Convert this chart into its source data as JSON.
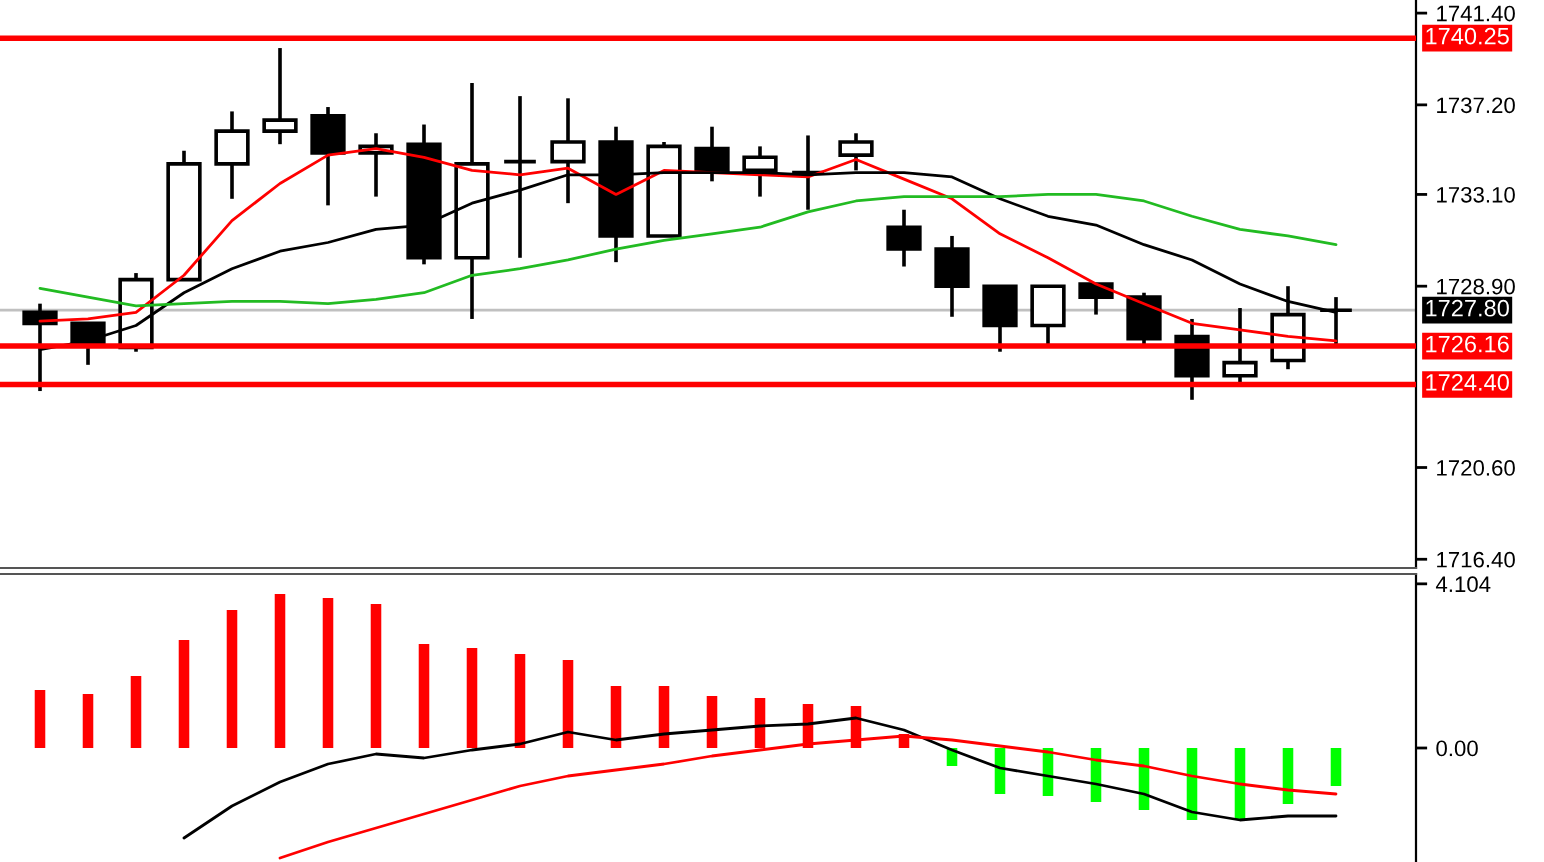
{
  "chart_data": [
    {
      "type": "candlestick",
      "categories": [
        null,
        null,
        null,
        null,
        null,
        null,
        null,
        null,
        null,
        null,
        null,
        null,
        null,
        null,
        null,
        null,
        null,
        null,
        null,
        null,
        null,
        null,
        null,
        null,
        null,
        null,
        null,
        null
      ],
      "ohlc": [
        [
          1727.7,
          1728.1,
          1724.1,
          1727.2
        ],
        [
          1727.2,
          1727.2,
          1725.3,
          1726.2
        ],
        [
          1726.1,
          1729.5,
          1725.9,
          1729.2
        ],
        [
          1729.2,
          1735.1,
          1729.2,
          1734.5
        ],
        [
          1734.5,
          1736.9,
          1732.9,
          1736.0
        ],
        [
          1736.0,
          1739.8,
          1735.4,
          1736.5
        ],
        [
          1736.7,
          1737.1,
          1732.6,
          1735.0
        ],
        [
          1735.0,
          1735.9,
          1733.0,
          1735.3
        ],
        [
          1735.4,
          1736.3,
          1729.9,
          1730.2
        ],
        [
          1730.2,
          1738.2,
          1727.4,
          1734.5
        ],
        [
          1734.6,
          1737.6,
          1730.2,
          1734.6
        ],
        [
          1734.6,
          1737.5,
          1732.7,
          1735.5
        ],
        [
          1735.5,
          1736.2,
          1730.0,
          1731.2
        ],
        [
          1731.2,
          1735.5,
          1731.2,
          1735.3
        ],
        [
          1735.2,
          1736.2,
          1733.7,
          1734.2
        ],
        [
          1734.2,
          1735.3,
          1733.0,
          1734.8
        ],
        [
          1734.1,
          1735.8,
          1732.4,
          1734.1
        ],
        [
          1734.9,
          1735.9,
          1734.2,
          1735.5
        ],
        [
          1731.6,
          1732.4,
          1729.8,
          1730.6
        ],
        [
          1730.6,
          1731.2,
          1727.5,
          1728.9
        ],
        [
          1728.9,
          1728.9,
          1725.9,
          1727.1
        ],
        [
          1727.1,
          1728.9,
          1726.1,
          1728.9
        ],
        [
          1729.0,
          1729.0,
          1727.6,
          1728.4
        ],
        [
          1728.4,
          1728.6,
          1726.2,
          1726.5
        ],
        [
          1726.6,
          1727.4,
          1723.7,
          1724.8
        ],
        [
          1724.8,
          1727.9,
          1724.4,
          1725.4
        ],
        [
          1725.5,
          1728.9,
          1725.1,
          1727.6
        ],
        [
          1727.8,
          1728.4,
          1726.2,
          1727.8
        ]
      ],
      "colors": [
        "#000000",
        "#000000",
        "#ffffff",
        "#ffffff",
        "#ffffff",
        "#ffffff",
        "#000000",
        "#ffffff",
        "#000000",
        "#ffffff",
        "#000000",
        "#ffffff",
        "#000000",
        "#ffffff",
        "#000000",
        "#ffffff",
        "#000000",
        "#ffffff",
        "#000000",
        "#000000",
        "#000000",
        "#ffffff",
        "#000000",
        "#000000",
        "#000000",
        "#ffffff",
        "#ffffff",
        "#000000"
      ],
      "series": [
        {
          "type": "line",
          "color": "#ff0000",
          "values": [
            1727.3,
            1727.4,
            1727.7,
            1729.4,
            1731.9,
            1733.6,
            1734.9,
            1735.2,
            1734.8,
            1734.2,
            1734.0,
            1734.3,
            1733.1,
            1734.2,
            1734.1,
            1734.0,
            1733.9,
            1734.7,
            1733.8,
            1732.9,
            1731.3,
            1730.2,
            1729.0,
            1728.1,
            1727.2,
            1726.9,
            1726.6,
            1726.4
          ]
        },
        {
          "type": "line",
          "color": "#000000",
          "values": [
            1726.0,
            1726.4,
            1727.1,
            1728.6,
            1729.7,
            1730.5,
            1730.9,
            1731.5,
            1731.7,
            1732.7,
            1733.3,
            1734.0,
            1734.0,
            1734.1,
            1734.1,
            1734.1,
            1734.0,
            1734.1,
            1734.1,
            1733.9,
            1732.9,
            1732.1,
            1731.7,
            1730.8,
            1730.1,
            1729.0,
            1728.2,
            1727.7
          ]
        },
        {
          "type": "line",
          "color": "#22bb22",
          "values": [
            1728.8,
            1728.4,
            1728.0,
            1728.1,
            1728.2,
            1728.2,
            1728.1,
            1728.3,
            1728.6,
            1729.4,
            1729.7,
            1730.1,
            1730.6,
            1731.0,
            1731.3,
            1731.6,
            1732.3,
            1732.8,
            1733.0,
            1733.0,
            1733.0,
            1733.1,
            1733.1,
            1732.8,
            1732.1,
            1731.5,
            1731.2,
            1730.8
          ]
        }
      ],
      "ylim": [
        1716.0,
        1742.0
      ],
      "yticks": [
        {
          "value": 1741.4,
          "label": "1741.40"
        },
        {
          "value": 1737.2,
          "label": "1737.20"
        },
        {
          "value": 1733.1,
          "label": "1733.10"
        },
        {
          "value": 1728.9,
          "label": "1728.90"
        },
        {
          "value": 1720.6,
          "label": "1720.60"
        },
        {
          "value": 1716.4,
          "label": "1716.40"
        }
      ],
      "ref_lines": [
        {
          "axis": "y",
          "value": 1727.8,
          "label": "1727.80",
          "color": "#c0c0c0"
        },
        {
          "axis": "y",
          "value": 1740.25,
          "label": "1740.25",
          "color": "#ff0000"
        },
        {
          "axis": "y",
          "value": 1726.16,
          "label": "1726.16",
          "color": "#ff0000"
        },
        {
          "axis": "y",
          "value": 1724.4,
          "label": "1724.40",
          "color": "#ff0000"
        }
      ],
      "tick_labels": "y"
    },
    {
      "type": "bar",
      "categories": [
        null,
        null,
        null,
        null,
        null,
        null,
        null,
        null,
        null,
        null,
        null,
        null,
        null,
        null,
        null,
        null,
        null,
        null,
        null,
        null,
        null,
        null,
        null,
        null,
        null,
        null,
        null,
        null
      ],
      "series": [
        {
          "type": "bar",
          "values": [
            1.45,
            1.35,
            1.8,
            2.7,
            3.45,
            3.85,
            3.75,
            3.6,
            2.6,
            2.5,
            2.35,
            2.2,
            1.55,
            1.55,
            1.3,
            1.25,
            1.1,
            1.05,
            0.35,
            -0.45,
            -1.15,
            -1.2,
            -1.35,
            -1.55,
            -1.8,
            -1.8,
            -1.4,
            -0.95
          ],
          "colors": [
            "#ff0000",
            "#ff0000",
            "#ff0000",
            "#ff0000",
            "#ff0000",
            "#ff0000",
            "#ff0000",
            "#ff0000",
            "#ff0000",
            "#ff0000",
            "#ff0000",
            "#ff0000",
            "#ff0000",
            "#ff0000",
            "#ff0000",
            "#ff0000",
            "#ff0000",
            "#ff0000",
            "#ff0000",
            "#00ff00",
            "#00ff00",
            "#00ff00",
            "#00ff00",
            "#00ff00",
            "#00ff00",
            "#00ff00",
            "#00ff00",
            "#00ff00"
          ]
        },
        {
          "type": "line",
          "color": "#000000",
          "values": [
            null,
            null,
            null,
            -2.25,
            -1.45,
            -0.85,
            -0.4,
            -0.15,
            -0.25,
            -0.05,
            0.1,
            0.4,
            0.2,
            0.35,
            0.45,
            0.55,
            0.6,
            0.75,
            0.45,
            -0.05,
            -0.5,
            -0.7,
            -0.9,
            -1.15,
            -1.6,
            -1.8,
            -1.7,
            -1.7
          ]
        },
        {
          "type": "line",
          "color": "#ff0000",
          "values": [
            null,
            null,
            null,
            null,
            null,
            -2.75,
            -2.35,
            -2.0,
            -1.65,
            -1.3,
            -0.95,
            -0.7,
            -0.55,
            -0.4,
            -0.2,
            -0.05,
            0.1,
            0.2,
            0.3,
            0.2,
            0.05,
            -0.1,
            -0.3,
            -0.45,
            -0.7,
            -0.9,
            -1.05,
            -1.15
          ]
        }
      ],
      "ylim": [
        -2.85,
        4.35
      ],
      "yticks": [
        {
          "value": 4.104,
          "label": "4.104"
        },
        {
          "value": 0,
          "label": "0.00"
        }
      ],
      "tick_labels": "y"
    }
  ]
}
